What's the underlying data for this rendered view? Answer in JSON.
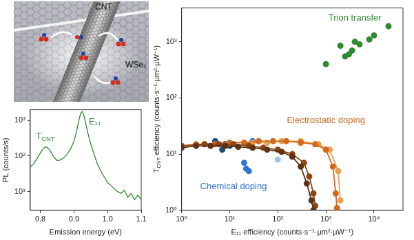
{
  "diagram": {
    "tube_label": "CNT",
    "sheet_label": "WSe₂"
  },
  "chart_data": [
    {
      "type": "line",
      "x_label": "Emission energy (eV)",
      "y_label": "PL (counts/s)",
      "log": "y",
      "grid": false,
      "x": [
        0.77,
        0.78,
        0.79,
        0.8,
        0.805,
        0.81,
        0.815,
        0.82,
        0.825,
        0.83,
        0.835,
        0.84,
        0.85,
        0.86,
        0.87,
        0.88,
        0.89,
        0.9,
        0.905,
        0.91,
        0.915,
        0.92,
        0.925,
        0.93,
        0.935,
        0.94,
        0.945,
        0.95,
        0.96,
        0.97,
        0.98,
        0.99,
        1.0,
        1.01,
        1.02,
        1.03,
        1.04,
        1.05,
        1.06,
        1.07,
        1.08,
        1.09,
        1.1
      ],
      "series": [
        {
          "color": "#2e8b2e",
          "line_style": "solid",
          "marker": "none",
          "values": [
            50,
            60,
            85,
            120,
            145,
            165,
            180,
            175,
            160,
            140,
            115,
            95,
            75,
            78,
            90,
            115,
            160,
            260,
            380,
            620,
            1050,
            1600,
            1800,
            1350,
            820,
            500,
            330,
            220,
            110,
            60,
            38,
            26,
            18,
            15,
            12,
            10,
            9,
            11,
            7,
            9,
            6,
            8,
            6
          ]
        }
      ],
      "xlim": [
        0.77,
        1.1
      ],
      "xticks": [
        0.8,
        0.9,
        {
          "value": 1,
          "label": "1.0"
        },
        1.1
      ],
      "ylim": [
        3,
        2000
      ],
      "yticks": [
        {
          "value": 10,
          "label": "10¹"
        },
        {
          "value": 100,
          "label": "10²"
        },
        {
          "value": 1000,
          "label": "10³"
        }
      ],
      "annotations": [
        {
          "text": [
            {
              "text": "T"
            },
            {
              "text": "CNT",
              "sub": true
            }
          ],
          "x": 0.815,
          "y": 350,
          "color": "#2e8b2e"
        },
        {
          "text": "E₁₁",
          "x": 0.962,
          "y": 900,
          "color": "#2e8b2e"
        }
      ]
    },
    {
      "type": "scatter",
      "x_label": "E₁₁ efficiency (counts·s⁻¹·µm²·µW⁻¹)",
      "y_label": [
        {
          "text": "T"
        },
        {
          "text": "CNT",
          "sub": true
        },
        {
          "text": " efficiency (counts·s⁻¹·µm²·µW⁻¹)"
        }
      ],
      "log": true,
      "grid": false,
      "xlim": [
        1,
        40000
      ],
      "xticks": [
        {
          "value": 1,
          "label": "10⁰"
        },
        {
          "value": 10,
          "label": "10¹"
        },
        {
          "value": 100,
          "label": "10²"
        },
        {
          "value": 1000,
          "label": "10³"
        },
        {
          "value": 10000,
          "label": "10⁴"
        }
      ],
      "ylim": [
        1,
        4000
      ],
      "yticks": [
        {
          "value": 1,
          "label": "10⁰"
        },
        {
          "value": 10,
          "label": "10¹"
        },
        {
          "value": 100,
          "label": "10²"
        },
        {
          "value": 1000,
          "label": "10³"
        }
      ],
      "series": [
        {
          "color": "#2e8b2e",
          "line_style": "none",
          "marker": "circle",
          "x": [
            1000,
            2000,
            2500,
            3000,
            3500,
            4000,
            5000,
            8000,
            10000,
            20000
          ],
          "values": [
            400,
            850,
            550,
            600,
            700,
            1000,
            900,
            1100,
            1300,
            1900
          ]
        },
        {
          "color": "#5c3317",
          "line_style": "solid",
          "marker": "circle",
          "x": [
            1,
            2,
            4,
            8,
            15,
            30,
            60,
            120,
            200,
            300,
            400,
            500,
            550
          ],
          "values": [
            13,
            14,
            14,
            14,
            13.5,
            13,
            12,
            11,
            9,
            6,
            3,
            1.5,
            1
          ]
        },
        {
          "color": "#8b4513",
          "line_style": "solid",
          "marker": "circle",
          "x": [
            1,
            3,
            6,
            12,
            25,
            50,
            100,
            200,
            350,
            450,
            550,
            600
          ],
          "values": [
            14,
            15,
            15,
            15,
            14,
            13,
            12,
            10,
            7,
            4,
            2,
            1.2
          ]
        },
        {
          "color": "#d2691e",
          "line_style": "solid",
          "marker": "circle",
          "x": [
            1,
            2,
            5,
            10,
            20,
            40,
            80,
            150,
            300,
            600,
            1000,
            1400,
            1600,
            1700
          ],
          "values": [
            14,
            15,
            15,
            16,
            16,
            17,
            17,
            17,
            16,
            15,
            12,
            6,
            2,
            1.1
          ]
        },
        {
          "color": "#e8a04a",
          "line_style": "solid",
          "marker": "circle",
          "x": [
            1,
            3,
            10,
            30,
            60,
            120,
            300,
            700,
            1200,
            1800,
            2000
          ],
          "values": [
            14,
            15,
            16,
            16,
            16,
            17,
            17,
            15,
            12,
            5,
            1.5
          ]
        },
        {
          "colors": [
            "#1f4e79",
            "#1f4e79",
            "#1f4e79",
            "#1f4e79",
            "#2e75d8",
            "#2e75d8",
            "#2e75d8",
            "#2e75d8",
            "#9dc3e6"
          ],
          "line_style": "none",
          "marker": "circle",
          "x": [
            5,
            7,
            8,
            10,
            20,
            22,
            25,
            30,
            100
          ],
          "values": [
            17,
            12,
            15,
            14,
            7,
            5.5,
            5,
            17,
            8
          ]
        }
      ],
      "annotations": [
        {
          "text": "Trion transfer",
          "x": 4000,
          "y": 2600,
          "color": "#2e8b2e"
        },
        {
          "text": "Electrostatic doping",
          "x": 1000,
          "y": 40,
          "color": "#d2691e"
        },
        {
          "text": "Chemical doping",
          "x": 12,
          "y": 2.6,
          "color": "#2e75d8"
        }
      ]
    }
  ]
}
